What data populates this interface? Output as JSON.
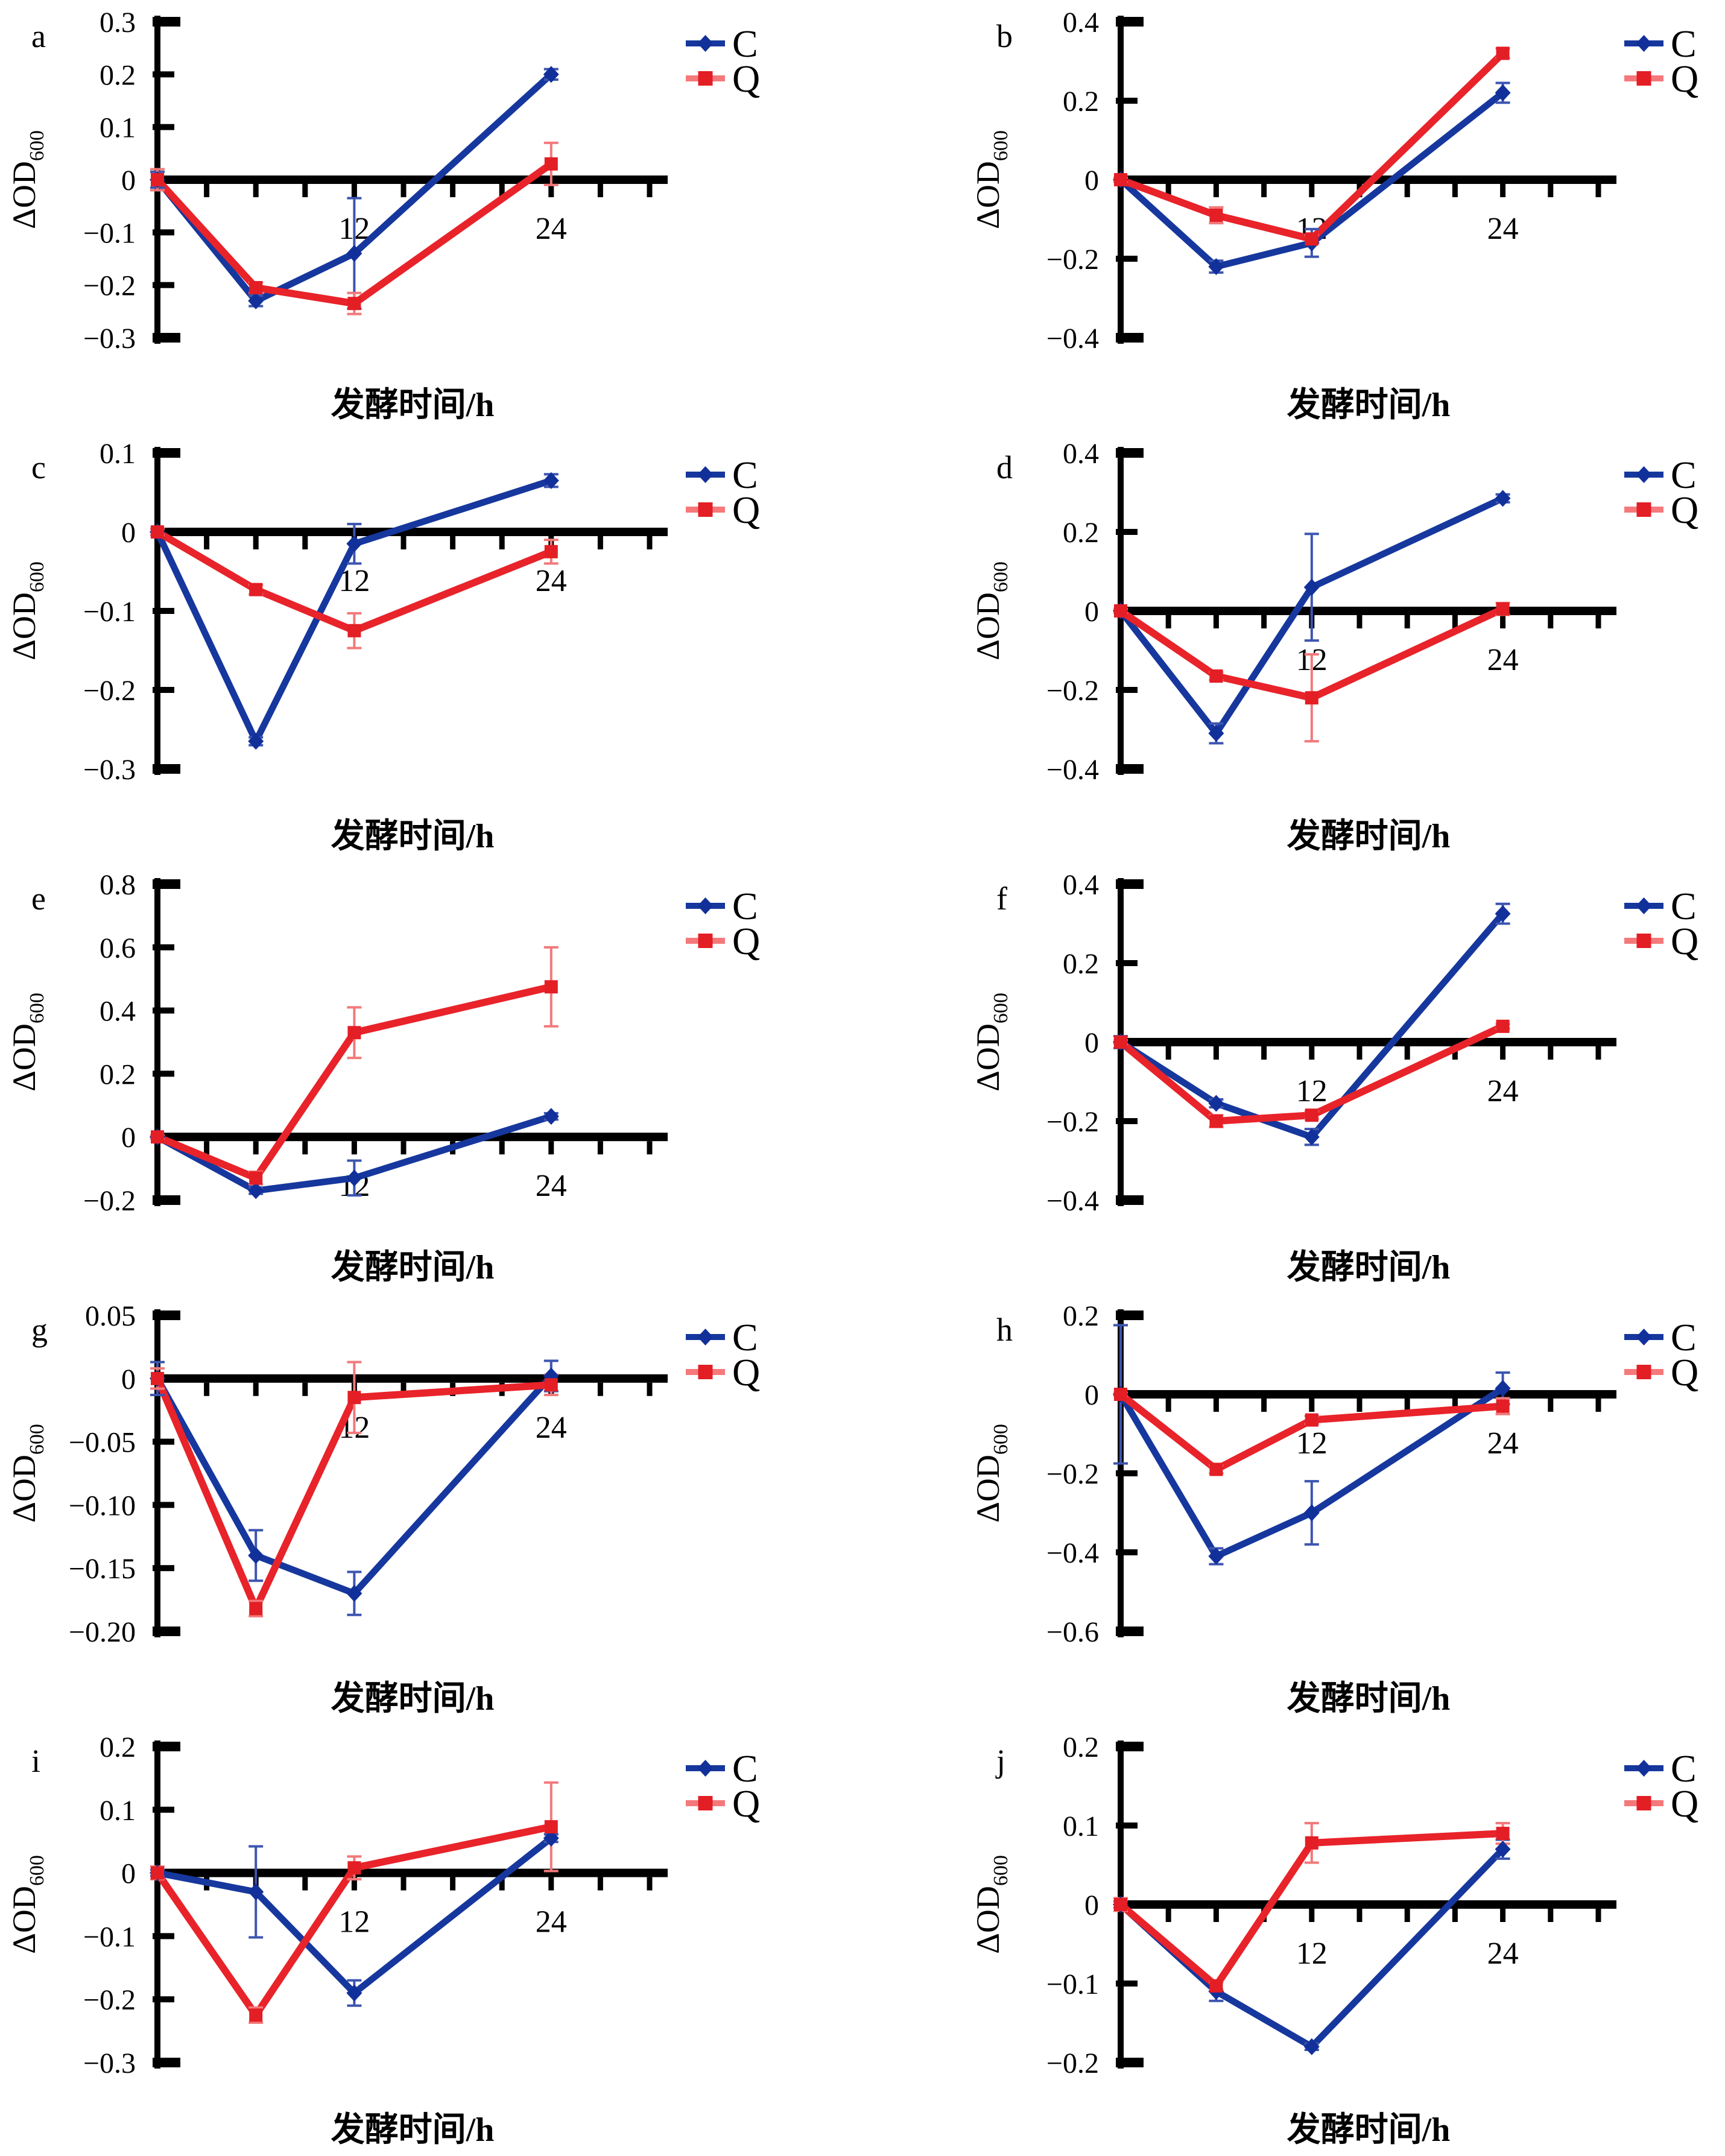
{
  "axis": {
    "x_label": "发酵时间/h",
    "y_label_main": "ΔOD",
    "y_label_sub": "600",
    "x_range": [
      0,
      30
    ],
    "x_tick_step": 3,
    "x_labeled_ticks": [
      {
        "x": 12,
        "label": "12"
      },
      {
        "x": 24,
        "label": "24"
      }
    ]
  },
  "legend": {
    "position": "top-right",
    "items": [
      {
        "name": "C",
        "label": "C",
        "marker": "diamond"
      },
      {
        "name": "Q",
        "label": "Q",
        "marker": "square"
      }
    ]
  },
  "colors": {
    "c_line": "#16379D",
    "c_marker": "#12309A",
    "c_error": "#3D55B0",
    "q_line": "#E8232A",
    "q_marker": "#E31E25",
    "q_error": "#F2797B",
    "q_legend_line": "#F5797B",
    "axis": "#000000",
    "text": "#000000",
    "background": "#FFFFFF"
  },
  "chart_data": [
    {
      "id": "a",
      "panel_letter": "a",
      "type": "line",
      "x": [
        0,
        6,
        12,
        24
      ],
      "xlim": [
        0,
        30
      ],
      "ylim": [
        -0.3,
        0.3
      ],
      "xlabel": "发酵时间/h",
      "ylabel": "ΔOD600",
      "grid": false,
      "yticks": [
        {
          "v": 0.3,
          "label": "0.3"
        },
        {
          "v": 0.2,
          "label": "0.2"
        },
        {
          "v": 0.1,
          "label": "0.1"
        },
        {
          "v": 0,
          "label": "0"
        },
        {
          "v": -0.1,
          "label": "−0.1"
        },
        {
          "v": -0.2,
          "label": "−0.2"
        },
        {
          "v": -0.3,
          "label": "−0.3"
        }
      ],
      "series": [
        {
          "name": "C",
          "values": [
            0,
            -0.23,
            -0.14,
            0.2
          ],
          "errors": [
            0.015,
            0.01,
            0.105,
            0.01
          ]
        },
        {
          "name": "Q",
          "values": [
            0,
            -0.205,
            -0.235,
            0.03
          ],
          "errors": [
            0.02,
            0.01,
            0.02,
            0.04
          ]
        }
      ]
    },
    {
      "id": "b",
      "panel_letter": "b",
      "type": "line",
      "x": [
        0,
        6,
        12,
        24
      ],
      "xlim": [
        0,
        30
      ],
      "ylim": [
        -0.4,
        0.4
      ],
      "xlabel": "发酵时间/h",
      "ylabel": "ΔOD600",
      "grid": false,
      "yticks": [
        {
          "v": 0.4,
          "label": "0.4"
        },
        {
          "v": 0.2,
          "label": "0.2"
        },
        {
          "v": 0,
          "label": "0"
        },
        {
          "v": -0.2,
          "label": "−0.2"
        },
        {
          "v": -0.4,
          "label": "−0.4"
        }
      ],
      "series": [
        {
          "name": "C",
          "values": [
            0,
            -0.22,
            -0.16,
            0.22
          ],
          "errors": [
            0.005,
            0.015,
            0.035,
            0.025
          ]
        },
        {
          "name": "Q",
          "values": [
            0,
            -0.09,
            -0.15,
            0.32
          ],
          "errors": [
            0.005,
            0.02,
            0.01,
            0.012
          ]
        }
      ]
    },
    {
      "id": "c",
      "panel_letter": "c",
      "type": "line",
      "x": [
        0,
        6,
        12,
        24
      ],
      "xlim": [
        0,
        30
      ],
      "ylim": [
        -0.3,
        0.1
      ],
      "xlabel": "发酵时间/h",
      "ylabel": "ΔOD600",
      "grid": false,
      "yticks": [
        {
          "v": 0.1,
          "label": "0.1"
        },
        {
          "v": 0,
          "label": "0"
        },
        {
          "v": -0.1,
          "label": "−0.1"
        },
        {
          "v": -0.2,
          "label": "−0.2"
        },
        {
          "v": -0.3,
          "label": "−0.3"
        }
      ],
      "series": [
        {
          "name": "C",
          "values": [
            0,
            -0.265,
            -0.015,
            0.065
          ],
          "errors": [
            0.004,
            0.005,
            0.025,
            0.008
          ]
        },
        {
          "name": "Q",
          "values": [
            0,
            -0.073,
            -0.125,
            -0.025
          ],
          "errors": [
            0.004,
            0.006,
            0.022,
            0.015
          ]
        }
      ]
    },
    {
      "id": "d",
      "panel_letter": "d",
      "type": "line",
      "x": [
        0,
        6,
        12,
        24
      ],
      "xlim": [
        0,
        30
      ],
      "ylim": [
        -0.4,
        0.4
      ],
      "xlabel": "发酵时间/h",
      "ylabel": "ΔOD600",
      "grid": false,
      "yticks": [
        {
          "v": 0.4,
          "label": "0.4"
        },
        {
          "v": 0.2,
          "label": "0.2"
        },
        {
          "v": 0,
          "label": "0"
        },
        {
          "v": -0.2,
          "label": "−0.2"
        },
        {
          "v": -0.4,
          "label": "−0.4"
        }
      ],
      "series": [
        {
          "name": "C",
          "values": [
            0,
            -0.31,
            0.06,
            0.285
          ],
          "errors": [
            0.005,
            0.025,
            0.135,
            0.01
          ]
        },
        {
          "name": "Q",
          "values": [
            0,
            -0.165,
            -0.22,
            0.005
          ],
          "errors": [
            0.005,
            0.01,
            0.11,
            0.015
          ]
        }
      ]
    },
    {
      "id": "e",
      "panel_letter": "e",
      "type": "line",
      "x": [
        0,
        6,
        12,
        24
      ],
      "xlim": [
        0,
        30
      ],
      "ylim": [
        -0.2,
        0.8
      ],
      "xlabel": "发酵时间/h",
      "ylabel": "ΔOD600",
      "grid": false,
      "yticks": [
        {
          "v": 0.8,
          "label": "0.8"
        },
        {
          "v": 0.6,
          "label": "0.6"
        },
        {
          "v": 0.4,
          "label": "0.4"
        },
        {
          "v": 0.2,
          "label": "0.2"
        },
        {
          "v": 0,
          "label": "0"
        },
        {
          "v": -0.2,
          "label": "−0.2"
        }
      ],
      "series": [
        {
          "name": "C",
          "values": [
            0,
            -0.17,
            -0.13,
            0.065
          ],
          "errors": [
            0.005,
            0.01,
            0.055,
            0.01
          ]
        },
        {
          "name": "Q",
          "values": [
            0,
            -0.13,
            0.33,
            0.475
          ],
          "errors": [
            0.005,
            0.02,
            0.08,
            0.125
          ]
        }
      ]
    },
    {
      "id": "f",
      "panel_letter": "f",
      "type": "line",
      "x": [
        0,
        6,
        12,
        24
      ],
      "xlim": [
        0,
        30
      ],
      "ylim": [
        -0.4,
        0.4
      ],
      "xlabel": "发酵时间/h",
      "ylabel": "ΔOD600",
      "grid": false,
      "yticks": [
        {
          "v": 0.4,
          "label": "0.4"
        },
        {
          "v": 0.2,
          "label": "0.2"
        },
        {
          "v": 0,
          "label": "0"
        },
        {
          "v": -0.2,
          "label": "−0.2"
        },
        {
          "v": -0.4,
          "label": "−0.4"
        }
      ],
      "series": [
        {
          "name": "C",
          "values": [
            0,
            -0.155,
            -0.24,
            0.325
          ],
          "errors": [
            0.015,
            0.01,
            0.02,
            0.025
          ]
        },
        {
          "name": "Q",
          "values": [
            0,
            -0.2,
            -0.185,
            0.04
          ],
          "errors": [
            0.005,
            0.015,
            0.01,
            0.006
          ]
        }
      ]
    },
    {
      "id": "g",
      "panel_letter": "g",
      "type": "line",
      "x": [
        0,
        6,
        12,
        24
      ],
      "xlim": [
        0,
        30
      ],
      "ylim": [
        -0.2,
        0.05
      ],
      "xlabel": "发酵时间/h",
      "ylabel": "ΔOD600",
      "grid": false,
      "yticks": [
        {
          "v": 0.05,
          "label": "0.05"
        },
        {
          "v": 0,
          "label": "0"
        },
        {
          "v": -0.05,
          "label": "−0.05"
        },
        {
          "v": -0.1,
          "label": "−0.10"
        },
        {
          "v": -0.15,
          "label": "−0.15"
        },
        {
          "v": -0.2,
          "label": "−0.20"
        }
      ],
      "series": [
        {
          "name": "C",
          "values": [
            0,
            -0.14,
            -0.17,
            0.002
          ],
          "errors": [
            0.013,
            0.02,
            0.017,
            0.012
          ]
        },
        {
          "name": "Q",
          "values": [
            0,
            -0.182,
            -0.015,
            -0.005
          ],
          "errors": [
            0.008,
            0.006,
            0.028,
            0.008
          ]
        }
      ]
    },
    {
      "id": "h",
      "panel_letter": "h",
      "type": "line",
      "x": [
        0,
        6,
        12,
        24
      ],
      "xlim": [
        0,
        30
      ],
      "ylim": [
        -0.6,
        0.2
      ],
      "xlabel": "发酵时间/h",
      "ylabel": "ΔOD600",
      "grid": false,
      "yticks": [
        {
          "v": 0.2,
          "label": "0.2"
        },
        {
          "v": 0,
          "label": "0"
        },
        {
          "v": -0.2,
          "label": "−0.2"
        },
        {
          "v": -0.4,
          "label": "−0.4"
        },
        {
          "v": -0.6,
          "label": "−0.6"
        }
      ],
      "series": [
        {
          "name": "C",
          "values": [
            0,
            -0.41,
            -0.3,
            0.015
          ],
          "errors": [
            0.175,
            0.02,
            0.08,
            0.04
          ]
        },
        {
          "name": "Q",
          "values": [
            0,
            -0.19,
            -0.065,
            -0.03
          ],
          "errors": [
            0.004,
            0.01,
            0.01,
            0.02
          ]
        }
      ]
    },
    {
      "id": "i",
      "panel_letter": "i",
      "type": "line",
      "x": [
        0,
        6,
        12,
        24
      ],
      "xlim": [
        0,
        30
      ],
      "ylim": [
        -0.3,
        0.2
      ],
      "xlabel": "发酵时间/h",
      "ylabel": "ΔOD600",
      "grid": false,
      "yticks": [
        {
          "v": 0.2,
          "label": "0.2"
        },
        {
          "v": 0.1,
          "label": "0.1"
        },
        {
          "v": 0,
          "label": "0"
        },
        {
          "v": -0.1,
          "label": "−0.1"
        },
        {
          "v": -0.2,
          "label": "−0.2"
        },
        {
          "v": -0.3,
          "label": "−0.3"
        }
      ],
      "series": [
        {
          "name": "C",
          "values": [
            0,
            -0.03,
            -0.19,
            0.055
          ],
          "errors": [
            0.005,
            0.072,
            0.02,
            0.006
          ]
        },
        {
          "name": "Q",
          "values": [
            0,
            -0.225,
            0.008,
            0.073
          ],
          "errors": [
            0.01,
            0.012,
            0.018,
            0.07
          ]
        }
      ]
    },
    {
      "id": "j",
      "panel_letter": "j",
      "type": "line",
      "x": [
        0,
        6,
        12,
        24
      ],
      "xlim": [
        0,
        30
      ],
      "ylim": [
        -0.2,
        0.2
      ],
      "xlabel": "发酵时间/h",
      "ylabel": "ΔOD600",
      "grid": false,
      "yticks": [
        {
          "v": 0.2,
          "label": "0.2"
        },
        {
          "v": 0.1,
          "label": "0.1"
        },
        {
          "v": 0,
          "label": "0"
        },
        {
          "v": -0.1,
          "label": "−0.1"
        },
        {
          "v": -0.2,
          "label": "−0.2"
        }
      ],
      "series": [
        {
          "name": "C",
          "values": [
            0,
            -0.11,
            -0.18,
            0.07
          ],
          "errors": [
            0.004,
            0.012,
            0.004,
            0.012
          ]
        },
        {
          "name": "Q",
          "values": [
            0,
            -0.103,
            0.078,
            0.09
          ],
          "errors": [
            0.008,
            0.005,
            0.025,
            0.013
          ]
        }
      ]
    }
  ]
}
